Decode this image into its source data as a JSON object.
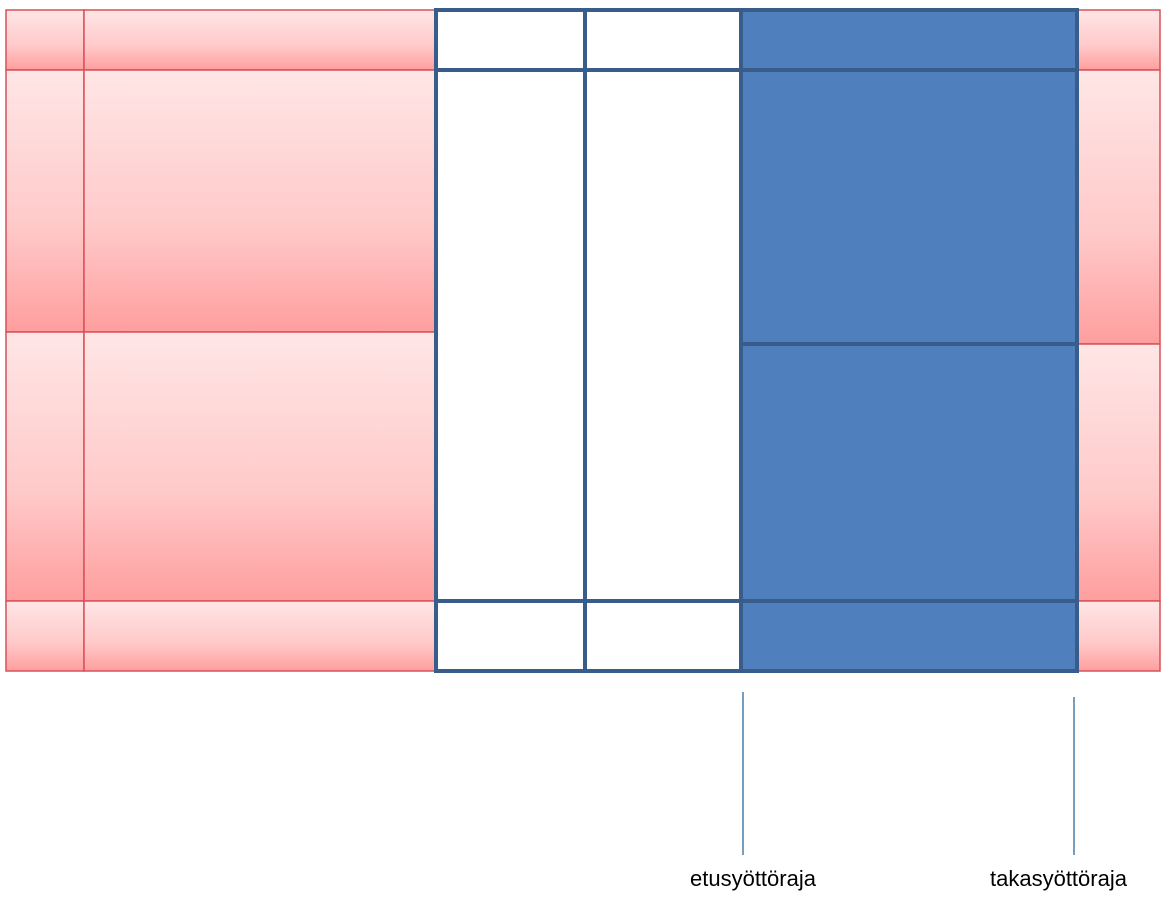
{
  "labels": {
    "front_service_line": "etusyöttöraja",
    "back_service_line": "takasyöttöraja"
  },
  "colors": {
    "pink_light": "#ffe6e6",
    "pink_dark": "#ff9999",
    "blue": "#4f80bd",
    "line": "#385d8a"
  }
}
